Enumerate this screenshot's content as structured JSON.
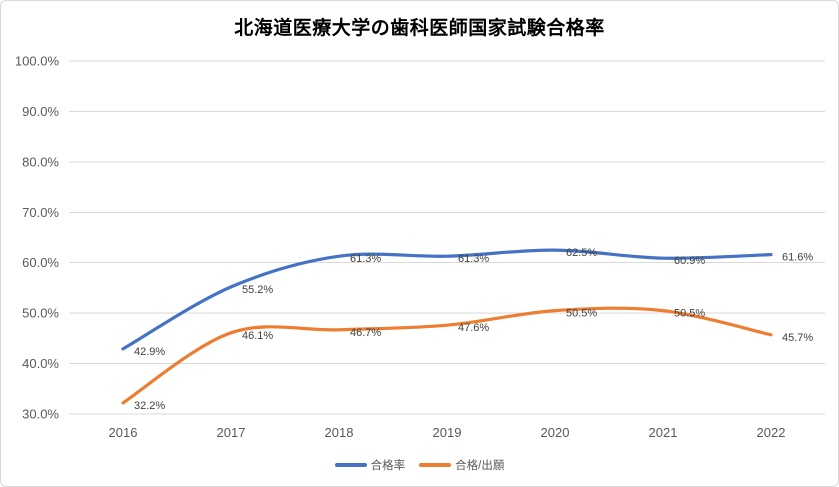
{
  "chart_data": {
    "type": "line",
    "title": "北海道医療大学の歯科医師国家試験合格率",
    "categories": [
      "2016",
      "2017",
      "2018",
      "2019",
      "2020",
      "2021",
      "2022"
    ],
    "series": [
      {
        "name": "合格率",
        "color": "#4472C4",
        "values": [
          42.9,
          55.2,
          61.3,
          61.3,
          62.5,
          60.9,
          61.6
        ],
        "labels": [
          "42.9%",
          "55.2%",
          "61.3%",
          "61.3%",
          "62.5%",
          "60.9%",
          "61.6%"
        ]
      },
      {
        "name": "合格/出願",
        "color": "#ED7D31",
        "values": [
          32.2,
          46.1,
          46.7,
          47.6,
          50.5,
          50.5,
          45.7
        ],
        "labels": [
          "32.2%",
          "46.1%",
          "46.7%",
          "47.6%",
          "50.5%",
          "50.5%",
          "45.7%"
        ]
      }
    ],
    "y_axis": {
      "min": 30,
      "max": 100,
      "step": 10,
      "tick_labels": [
        "100.0%",
        "90.0%",
        "80.0%",
        "70.0%",
        "60.0%",
        "50.0%",
        "40.0%",
        "30.0%"
      ]
    },
    "x_axis": {
      "tick_labels": [
        "2016",
        "2017",
        "2018",
        "2019",
        "2020",
        "2021",
        "2022"
      ]
    },
    "legend_position": "bottom",
    "grid": true,
    "smooth_lines": true,
    "colors": {
      "gridline": "#D9D9D9",
      "axis_text": "#595959",
      "data_label": "#404040",
      "border": "#D9D9D9",
      "background": "#FFFFFF"
    }
  }
}
